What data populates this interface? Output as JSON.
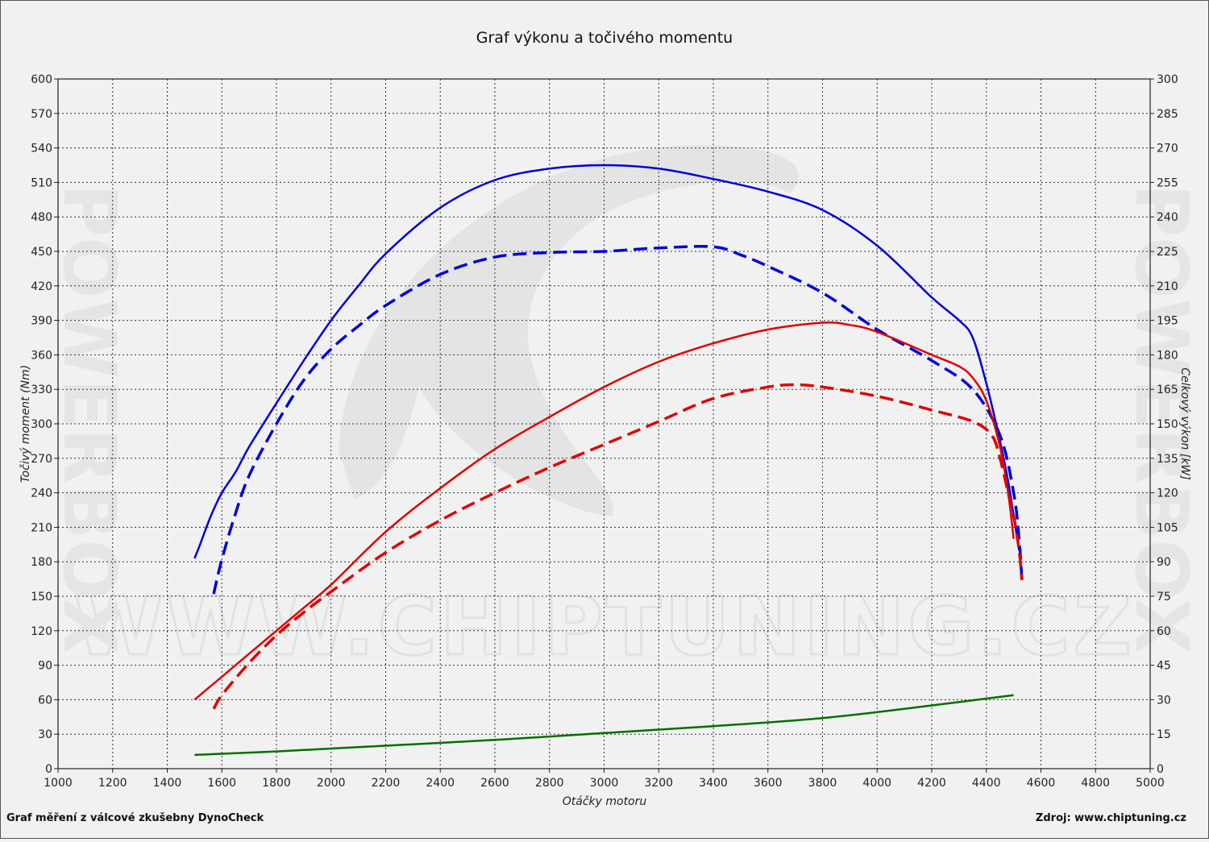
{
  "colors": {
    "background": "#f1f1f1",
    "torque_stock": "#e00000",
    "power_stock": "#0000dd",
    "torque_tuned": "#e00000",
    "power_tuned": "#0000dd",
    "loss": "#007000",
    "grid": "#333333"
  },
  "chart_data": {
    "type": "line",
    "title": "Graf výkonu a točivého momentu",
    "xlabel": "Otáčky motoru",
    "ylabel_left": "Točivý moment (Nm)",
    "ylabel_right": "Celkový výkon [kW]",
    "xlim": [
      1000,
      5000
    ],
    "ylim_left": [
      0,
      600
    ],
    "ylim_right": [
      0,
      300
    ],
    "grid": true,
    "x_ticks": [
      "1000",
      "1200",
      "1400",
      "1600",
      "1800",
      "2000",
      "2200",
      "2400",
      "2600",
      "2800",
      "3000",
      "3200",
      "3400",
      "3600",
      "3800",
      "4000",
      "4200",
      "4400",
      "4600",
      "4800",
      "5000"
    ],
    "y_ticks_left": [
      "0",
      "30",
      "60",
      "90",
      "120",
      "150",
      "180",
      "210",
      "240",
      "270",
      "300",
      "330",
      "360",
      "390",
      "420",
      "450",
      "480",
      "510",
      "540",
      "570",
      "600"
    ],
    "y_ticks_right": [
      "0",
      "15",
      "30",
      "45",
      "60",
      "75",
      "90",
      "105",
      "120",
      "135",
      "150",
      "165",
      "180",
      "195",
      "210",
      "225",
      "240",
      "255",
      "270",
      "285",
      "300"
    ],
    "series": [
      {
        "axis": "left",
        "style": "solid",
        "color": "#0000dd",
        "x": [
          1500,
          1520,
          1560,
          1600,
          1650,
          1700,
          1800,
          1900,
          2000,
          2100,
          2200,
          2400,
          2600,
          2800,
          3000,
          3200,
          3400,
          3600,
          3800,
          4000,
          4200,
          4300,
          4350,
          4400,
          4450,
          4480,
          4500,
          4520
        ],
        "y": [
          183,
          195,
          220,
          240,
          258,
          280,
          318,
          355,
          390,
          420,
          448,
          488,
          512,
          522,
          525,
          522,
          513,
          502,
          486,
          455,
          410,
          390,
          375,
          335,
          285,
          250,
          220,
          190
        ]
      },
      {
        "axis": "left",
        "style": "dashed",
        "color": "#0000dd",
        "x": [
          1570,
          1600,
          1650,
          1700,
          1800,
          1900,
          2000,
          2100,
          2200,
          2400,
          2600,
          2800,
          3000,
          3200,
          3400,
          3500,
          3600,
          3800,
          4000,
          4200,
          4350,
          4450,
          4500,
          4520,
          4530
        ],
        "y": [
          152,
          182,
          222,
          255,
          300,
          338,
          365,
          385,
          403,
          430,
          445,
          449,
          450,
          453,
          454,
          447,
          437,
          414,
          382,
          355,
          330,
          290,
          240,
          200,
          165
        ]
      },
      {
        "axis": "right",
        "style": "solid",
        "color": "#e00000",
        "x": [
          1500,
          1550,
          1600,
          1700,
          1800,
          1900,
          2000,
          2200,
          2400,
          2600,
          2800,
          3000,
          3200,
          3400,
          3600,
          3800,
          3900,
          4000,
          4200,
          4300,
          4350,
          4400,
          4450,
          4480,
          4500
        ],
        "y": [
          30,
          35,
          40,
          50,
          60,
          70,
          80,
          103,
          122,
          139,
          153,
          166,
          177,
          185,
          191,
          194,
          193,
          190,
          180,
          175,
          170,
          160,
          140,
          120,
          100
        ]
      },
      {
        "axis": "right",
        "style": "dashed",
        "color": "#e00000",
        "x": [
          1570,
          1600,
          1700,
          1800,
          1900,
          2000,
          2200,
          2400,
          2600,
          2800,
          3000,
          3200,
          3400,
          3600,
          3700,
          3800,
          4000,
          4200,
          4350,
          4420,
          4450,
          4480,
          4500,
          4520,
          4530
        ],
        "y": [
          26,
          32,
          46,
          58,
          68,
          77,
          94,
          108,
          120,
          131,
          141,
          151,
          161,
          166,
          167,
          166,
          162,
          156,
          151,
          145,
          135,
          120,
          110,
          95,
          82
        ]
      },
      {
        "axis": "right",
        "style": "solid",
        "color": "#007000",
        "x": [
          1500,
          1800,
          2200,
          2600,
          3000,
          3400,
          3800,
          4200,
          4500
        ],
        "y": [
          6,
          7.5,
          10,
          12.5,
          15.5,
          18.5,
          22,
          27.5,
          32
        ]
      }
    ]
  },
  "watermark": {
    "url": "WWW.CHIPTUNING.CZ",
    "brand": "POWERBOX"
  },
  "footer": {
    "left": "Graf měření z válcové zkušebny DynoCheck",
    "right": "Zdroj: www.chiptuning.cz"
  }
}
